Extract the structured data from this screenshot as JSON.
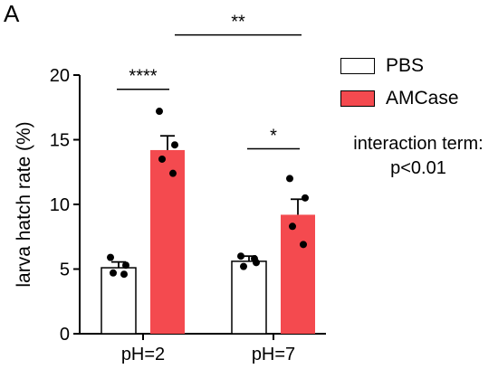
{
  "panel_label": "A",
  "legend": [
    {
      "label": "PBS",
      "color": "#ffffff"
    },
    {
      "label": "AMCase",
      "color": "#f44a4f"
    }
  ],
  "note": {
    "line1": "interaction term:",
    "line2": "p<0.01"
  },
  "significance": {
    "pbs_vs_amcase_ph2": "****",
    "pbs_vs_amcase_ph7": "*",
    "amcase_ph2_vs_ph7": "**"
  },
  "chart_data": {
    "type": "bar",
    "title": "",
    "xlabel": "",
    "ylabel": "larva hatch rate (%)",
    "ylim": [
      0,
      20
    ],
    "yticks": [
      0,
      5,
      10,
      15,
      20
    ],
    "categories": [
      "pH=2",
      "pH=7"
    ],
    "series": [
      {
        "name": "PBS",
        "color": "#ffffff",
        "values": [
          5.1,
          5.6
        ],
        "sem": [
          0.45,
          0.4
        ],
        "points": [
          [
            5.9,
            5.3,
            4.7,
            4.6
          ],
          [
            6.0,
            5.5,
            5.2,
            5.8
          ]
        ]
      },
      {
        "name": "AMCase",
        "color": "#f44a4f",
        "values": [
          14.2,
          9.2
        ],
        "sem": [
          1.1,
          1.2
        ],
        "points": [
          [
            17.2,
            14.6,
            13.5,
            12.4
          ],
          [
            12.0,
            10.5,
            8.3,
            6.9
          ]
        ]
      }
    ]
  }
}
